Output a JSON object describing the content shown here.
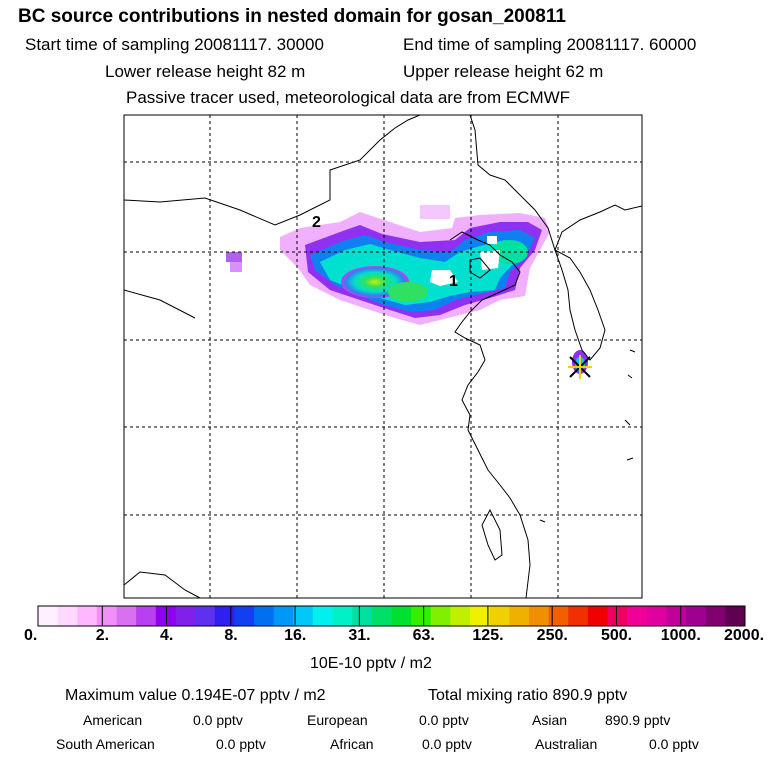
{
  "header": {
    "title": "BC  source contributions in nested domain for gosan_200811",
    "start_time": "Start time of sampling 20081117. 30000",
    "end_time": "End time of sampling 20081117. 60000",
    "lower_release": "Lower release height   82 m",
    "upper_release": "Upper release height   62 m",
    "tracer_note": "Passive tracer used, meteorological data are from ECMWF"
  },
  "map": {
    "markers": [
      "1",
      "2"
    ],
    "receptor_icon": "star-marker-icon"
  },
  "colorbar": {
    "labels": [
      "0.",
      "2.",
      "4.",
      "8.",
      "16.",
      "31.",
      "63.",
      "125.",
      "250.",
      "500.",
      "1000.",
      "2000."
    ],
    "unit": "10E-10 pptv / m2",
    "colors": [
      "#fff0ff",
      "#ffd8ff",
      "#ffb8ff",
      "#f090f8",
      "#d870f0",
      "#b840f0",
      "#9000f0",
      "#8020e8",
      "#6030f0",
      "#3020f0",
      "#1040f0",
      "#0070f0",
      "#0098f8",
      "#00c8f8",
      "#00f0f0",
      "#00f0c8",
      "#00e0a0",
      "#00e068",
      "#00e030",
      "#30f000",
      "#80f000",
      "#c0f000",
      "#f0f000",
      "#f0d000",
      "#f0b000",
      "#f09000",
      "#f06000",
      "#f03000",
      "#f00000",
      "#f00060",
      "#f00098",
      "#e000a0",
      "#c00098",
      "#a00090",
      "#800070",
      "#600050"
    ]
  },
  "stats": {
    "max_value": "Maximum value  0.194E-07 pptv / m2",
    "total_mixing": "Total mixing ratio      890.9 pptv",
    "american_label": "American",
    "american_value": "0.0 pptv",
    "european_label": "European",
    "european_value": "0.0 pptv",
    "asian_label": "Asian",
    "asian_value": "890.9 pptv",
    "south_american_label": "South American",
    "south_american_value": "0.0 pptv",
    "african_label": "African",
    "african_value": "0.0 pptv",
    "australian_label": "Australian",
    "australian_value": "0.0 pptv"
  }
}
